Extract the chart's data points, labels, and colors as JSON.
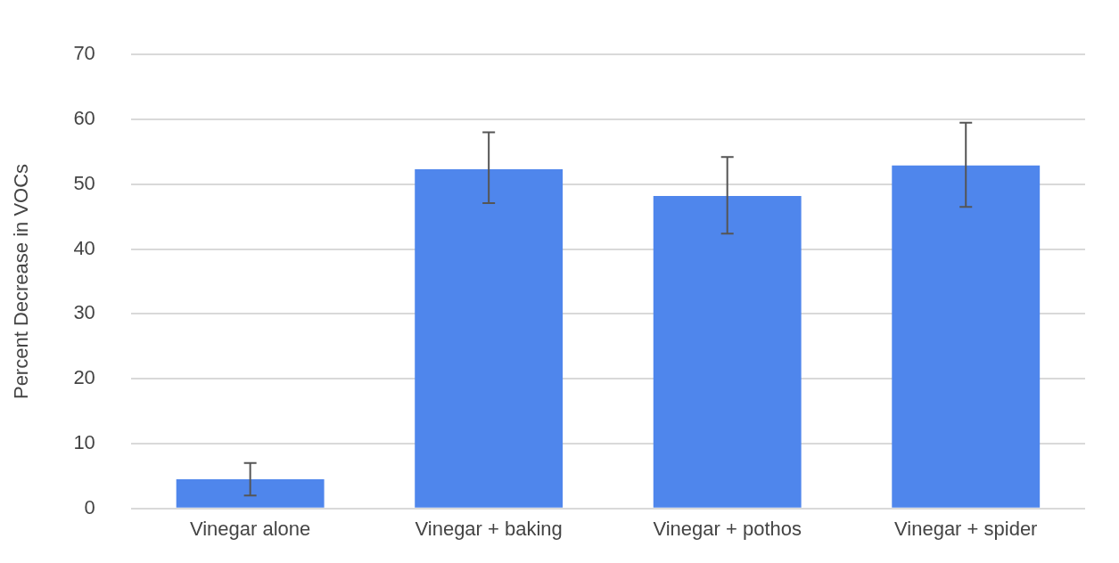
{
  "chart_data": {
    "type": "bar",
    "ylabel": "Percent Decrease in VOCs",
    "categories": [
      "Vinegar alone",
      "Vinegar + baking",
      "Vinegar + pothos",
      "Vinegar + spider"
    ],
    "values": [
      4.5,
      52.3,
      48.2,
      52.9
    ],
    "errors": [
      [
        2.0,
        7.0
      ],
      [
        47.1,
        58.0
      ],
      [
        42.4,
        54.2
      ],
      [
        46.5,
        59.5
      ]
    ],
    "color": "#4f86ec",
    "ylim": [
      0,
      70
    ],
    "yticks": [
      0,
      10,
      20,
      30,
      40,
      50,
      60,
      70
    ],
    "grid": "y",
    "legend": false
  }
}
